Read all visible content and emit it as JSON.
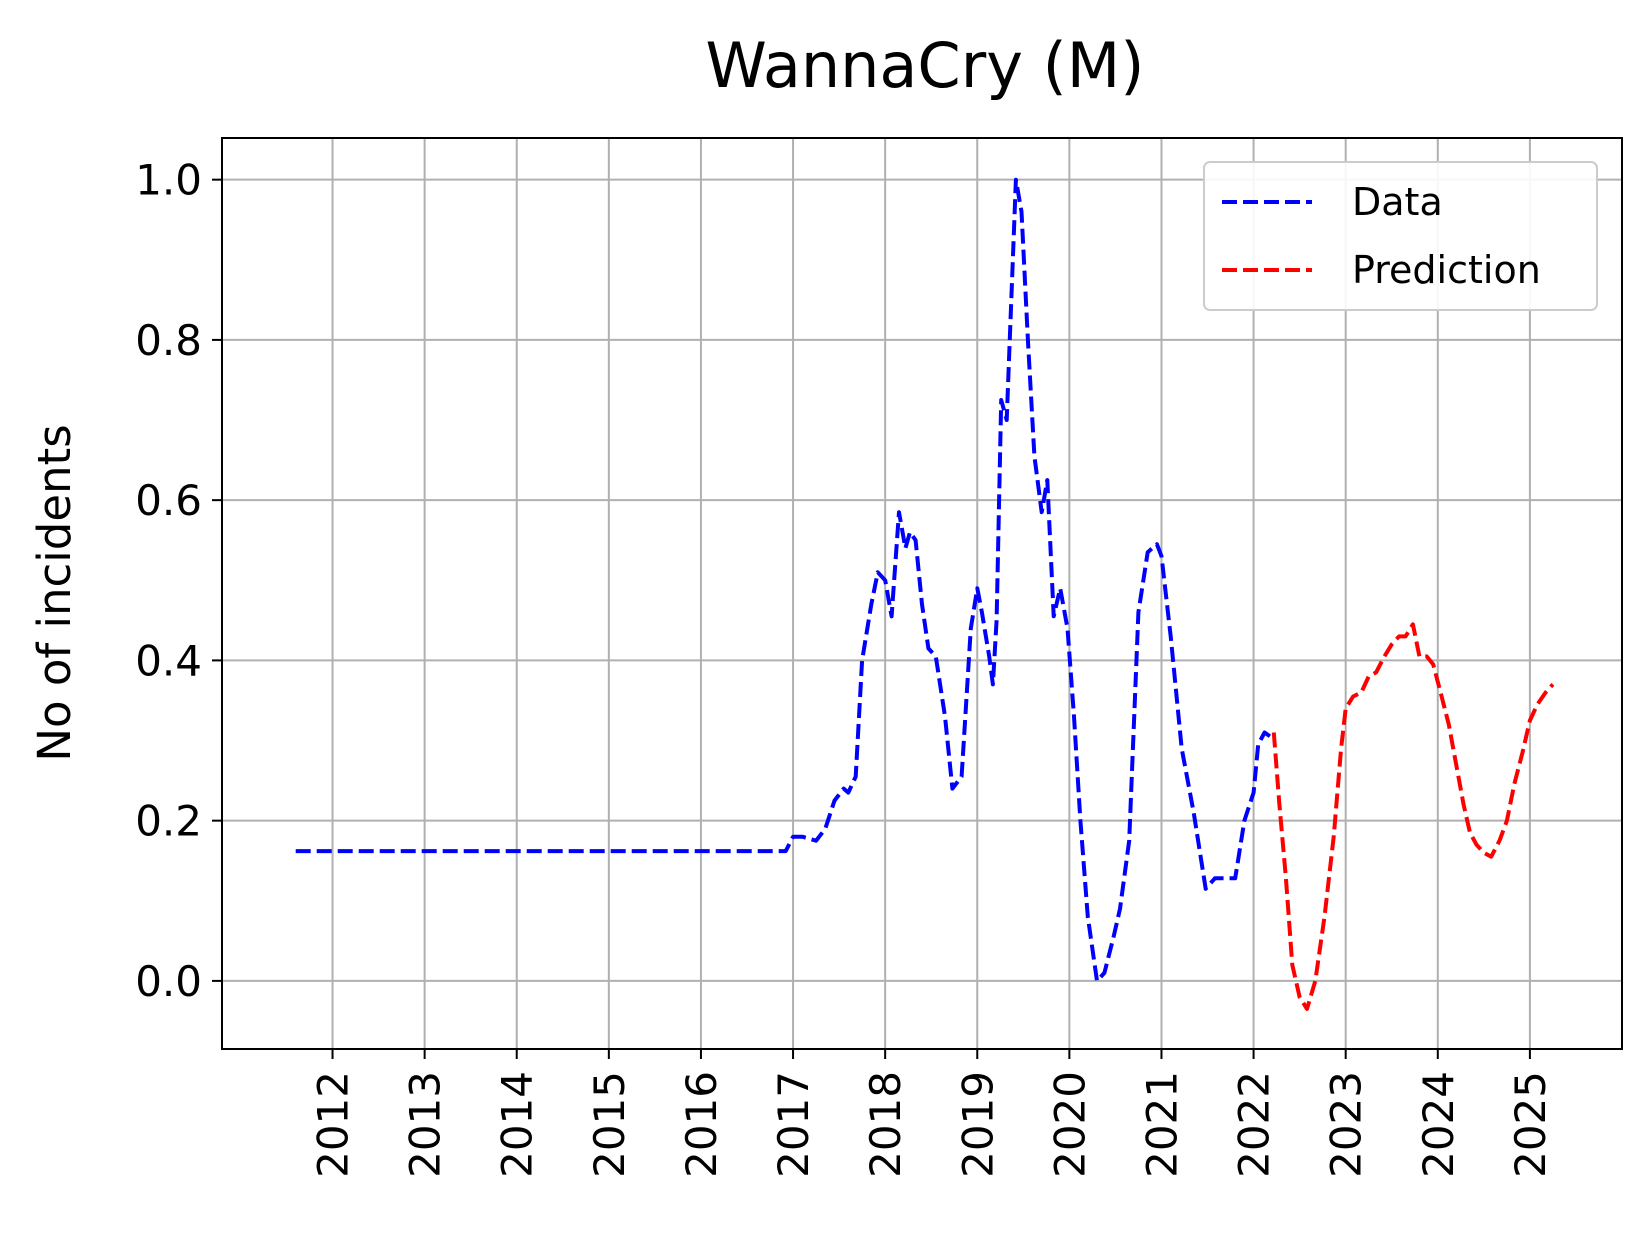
{
  "chart_data": {
    "type": "line",
    "title": "WannaCry (M)",
    "xlabel": "",
    "ylabel": "No of incidents",
    "x_ticks": [
      "2012",
      "2013",
      "2014",
      "2015",
      "2016",
      "2017",
      "2018",
      "2019",
      "2020",
      "2021",
      "2022",
      "2023",
      "2024",
      "2025"
    ],
    "y_ticks": [
      "0.0",
      "0.2",
      "0.4",
      "0.6",
      "0.8",
      "1.0"
    ],
    "xlim": [
      2010.8,
      2026.0
    ],
    "ylim": [
      -0.085,
      1.052
    ],
    "grid": true,
    "legend_position": "top-right",
    "series": [
      {
        "name": "Data",
        "color": "#0000ff",
        "points": [
          [
            2011.6,
            0.162
          ],
          [
            2012.0,
            0.162
          ],
          [
            2013.0,
            0.162
          ],
          [
            2014.0,
            0.162
          ],
          [
            2015.0,
            0.162
          ],
          [
            2016.0,
            0.162
          ],
          [
            2016.92,
            0.162
          ],
          [
            2017.0,
            0.18
          ],
          [
            2017.1,
            0.18
          ],
          [
            2017.25,
            0.175
          ],
          [
            2017.35,
            0.19
          ],
          [
            2017.45,
            0.225
          ],
          [
            2017.55,
            0.24
          ],
          [
            2017.6,
            0.235
          ],
          [
            2017.68,
            0.255
          ],
          [
            2017.75,
            0.4
          ],
          [
            2017.85,
            0.47
          ],
          [
            2017.92,
            0.51
          ],
          [
            2018.0,
            0.5
          ],
          [
            2018.07,
            0.455
          ],
          [
            2018.15,
            0.585
          ],
          [
            2018.22,
            0.54
          ],
          [
            2018.27,
            0.56
          ],
          [
            2018.33,
            0.55
          ],
          [
            2018.4,
            0.47
          ],
          [
            2018.47,
            0.415
          ],
          [
            2018.55,
            0.405
          ],
          [
            2018.65,
            0.33
          ],
          [
            2018.73,
            0.24
          ],
          [
            2018.83,
            0.255
          ],
          [
            2018.93,
            0.44
          ],
          [
            2019.0,
            0.49
          ],
          [
            2019.05,
            0.46
          ],
          [
            2019.13,
            0.405
          ],
          [
            2019.17,
            0.37
          ],
          [
            2019.21,
            0.45
          ],
          [
            2019.26,
            0.725
          ],
          [
            2019.32,
            0.7
          ],
          [
            2019.37,
            0.85
          ],
          [
            2019.42,
            1.0
          ],
          [
            2019.48,
            0.96
          ],
          [
            2019.55,
            0.8
          ],
          [
            2019.62,
            0.655
          ],
          [
            2019.7,
            0.585
          ],
          [
            2019.76,
            0.625
          ],
          [
            2019.83,
            0.455
          ],
          [
            2019.9,
            0.49
          ],
          [
            2019.98,
            0.44
          ],
          [
            2020.05,
            0.33
          ],
          [
            2020.12,
            0.2
          ],
          [
            2020.2,
            0.08
          ],
          [
            2020.3,
            0.0
          ],
          [
            2020.38,
            0.01
          ],
          [
            2020.48,
            0.055
          ],
          [
            2020.55,
            0.09
          ],
          [
            2020.65,
            0.175
          ],
          [
            2020.75,
            0.46
          ],
          [
            2020.85,
            0.535
          ],
          [
            2020.95,
            0.545
          ],
          [
            2021.0,
            0.53
          ],
          [
            2021.1,
            0.43
          ],
          [
            2021.22,
            0.29
          ],
          [
            2021.35,
            0.21
          ],
          [
            2021.48,
            0.115
          ],
          [
            2021.58,
            0.128
          ],
          [
            2021.68,
            0.128
          ],
          [
            2021.8,
            0.128
          ],
          [
            2021.9,
            0.2
          ],
          [
            2022.0,
            0.235
          ],
          [
            2022.05,
            0.295
          ],
          [
            2022.12,
            0.31
          ],
          [
            2022.18,
            0.305
          ]
        ]
      },
      {
        "name": "Prediction",
        "color": "#ff0000",
        "points": [
          [
            2022.22,
            0.31
          ],
          [
            2022.28,
            0.22
          ],
          [
            2022.35,
            0.13
          ],
          [
            2022.42,
            0.02
          ],
          [
            2022.5,
            -0.02
          ],
          [
            2022.58,
            -0.035
          ],
          [
            2022.67,
            0.0
          ],
          [
            2022.77,
            0.08
          ],
          [
            2022.87,
            0.18
          ],
          [
            2022.95,
            0.29
          ],
          [
            2023.0,
            0.34
          ],
          [
            2023.08,
            0.355
          ],
          [
            2023.17,
            0.36
          ],
          [
            2023.25,
            0.38
          ],
          [
            2023.33,
            0.385
          ],
          [
            2023.42,
            0.405
          ],
          [
            2023.5,
            0.42
          ],
          [
            2023.58,
            0.43
          ],
          [
            2023.65,
            0.43
          ],
          [
            2023.73,
            0.445
          ],
          [
            2023.8,
            0.405
          ],
          [
            2023.88,
            0.405
          ],
          [
            2023.95,
            0.395
          ],
          [
            2024.03,
            0.36
          ],
          [
            2024.12,
            0.32
          ],
          [
            2024.2,
            0.27
          ],
          [
            2024.28,
            0.22
          ],
          [
            2024.35,
            0.185
          ],
          [
            2024.42,
            0.17
          ],
          [
            2024.5,
            0.16
          ],
          [
            2024.58,
            0.155
          ],
          [
            2024.67,
            0.175
          ],
          [
            2024.75,
            0.2
          ],
          [
            2024.83,
            0.245
          ],
          [
            2024.92,
            0.285
          ],
          [
            2025.0,
            0.325
          ],
          [
            2025.08,
            0.345
          ],
          [
            2025.17,
            0.36
          ],
          [
            2025.25,
            0.37
          ]
        ]
      }
    ]
  }
}
